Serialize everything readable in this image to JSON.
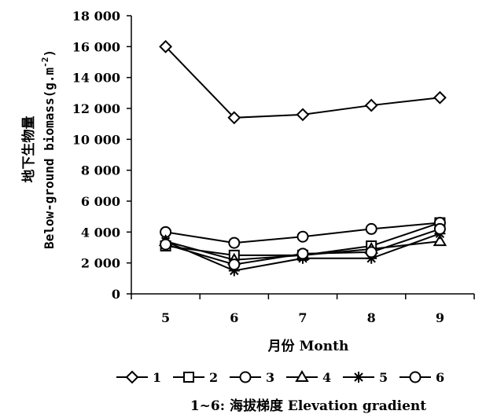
{
  "chart_data": {
    "type": "line",
    "categories": [
      "5",
      "6",
      "7",
      "8",
      "9"
    ],
    "ylim": [
      0,
      18000
    ],
    "yticks": [
      "0",
      "2 000",
      "4 000",
      "6 000",
      "8 000",
      "10 000",
      "12 000",
      "14 000",
      "16 000",
      "18 000"
    ],
    "ylabel_cn": "地下生物量",
    "ylabel_en": "Below-ground biomass(g.m",
    "ylabel_unit_sup": "-2",
    "ylabel_close": ")",
    "xlabel": "月份 Month",
    "series": [
      {
        "name": "1",
        "marker": "diamond",
        "values": [
          16000,
          11400,
          11600,
          12200,
          12700
        ]
      },
      {
        "name": "2",
        "marker": "square",
        "values": [
          3100,
          2500,
          2500,
          3100,
          4600
        ]
      },
      {
        "name": "3",
        "marker": "circle",
        "values": [
          4000,
          3300,
          3700,
          4200,
          4600
        ]
      },
      {
        "name": "4",
        "marker": "triangle",
        "values": [
          3400,
          2200,
          2500,
          2900,
          3400
        ]
      },
      {
        "name": "5",
        "marker": "star",
        "values": [
          3400,
          1500,
          2300,
          2300,
          3900
        ]
      },
      {
        "name": "6",
        "marker": "circle",
        "values": [
          3200,
          1900,
          2600,
          2700,
          4200
        ]
      }
    ],
    "legend_position": "bottom",
    "caption": "1~6: 海拔梯度 Elevation gradient"
  }
}
